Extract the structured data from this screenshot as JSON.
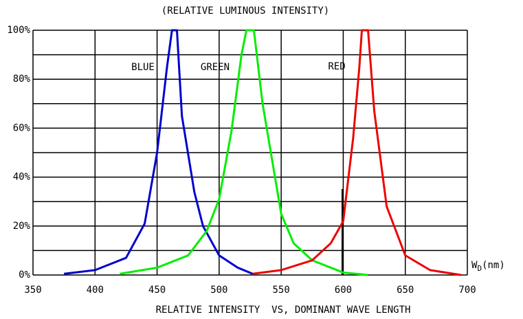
{
  "chart_data": {
    "type": "line",
    "title": "(RELATIVE LUMINOUS INTENSITY)",
    "x_label": "RELATIVE INTENSITY  VS, DOMINANT WAVE LENGTH",
    "x_unit_label": {
      "main": "W",
      "sub": "D",
      "unit": "(nm)"
    },
    "xlim": [
      350,
      700
    ],
    "xticks": [
      350,
      400,
      450,
      500,
      550,
      600,
      650,
      700
    ],
    "ylim": [
      0,
      100
    ],
    "yticks": [
      {
        "value": 0,
        "label": "0%"
      },
      {
        "value": 20,
        "label": "20%"
      },
      {
        "value": 40,
        "label": "40%"
      },
      {
        "value": 60,
        "label": "60%"
      },
      {
        "value": 80,
        "label": "80%"
      },
      {
        "value": 100,
        "label": "100%"
      }
    ],
    "yticks_minor": [
      10,
      30,
      50,
      70,
      90
    ],
    "grid": true,
    "series": [
      {
        "name": "BLUE",
        "color": "#0000cc",
        "x": [
          375,
          400,
          425,
          440,
          450,
          458,
          462,
          466,
          470,
          480,
          487,
          500,
          515,
          527
        ],
        "values": [
          0.5,
          2,
          7,
          21,
          50,
          85,
          100,
          100,
          65,
          34,
          20,
          8,
          3,
          0.5
        ]
      },
      {
        "name": "GREEN",
        "color": "#00ee00",
        "x": [
          420,
          450,
          475,
          490,
          500,
          510,
          518,
          522,
          528,
          535,
          550,
          560,
          575,
          600,
          620
        ],
        "values": [
          0.5,
          3,
          8,
          18,
          31,
          59,
          90,
          100,
          100,
          70,
          25,
          13,
          6,
          1,
          0
        ]
      },
      {
        "name": "RED",
        "color": "#ee0000",
        "x": [
          527,
          550,
          575,
          590,
          600,
          608,
          613,
          615,
          620,
          625,
          635,
          650,
          670,
          695
        ],
        "values": [
          0.5,
          2,
          6,
          13,
          22,
          56,
          85,
          100,
          100,
          67,
          28,
          8,
          2,
          0
        ]
      }
    ]
  }
}
